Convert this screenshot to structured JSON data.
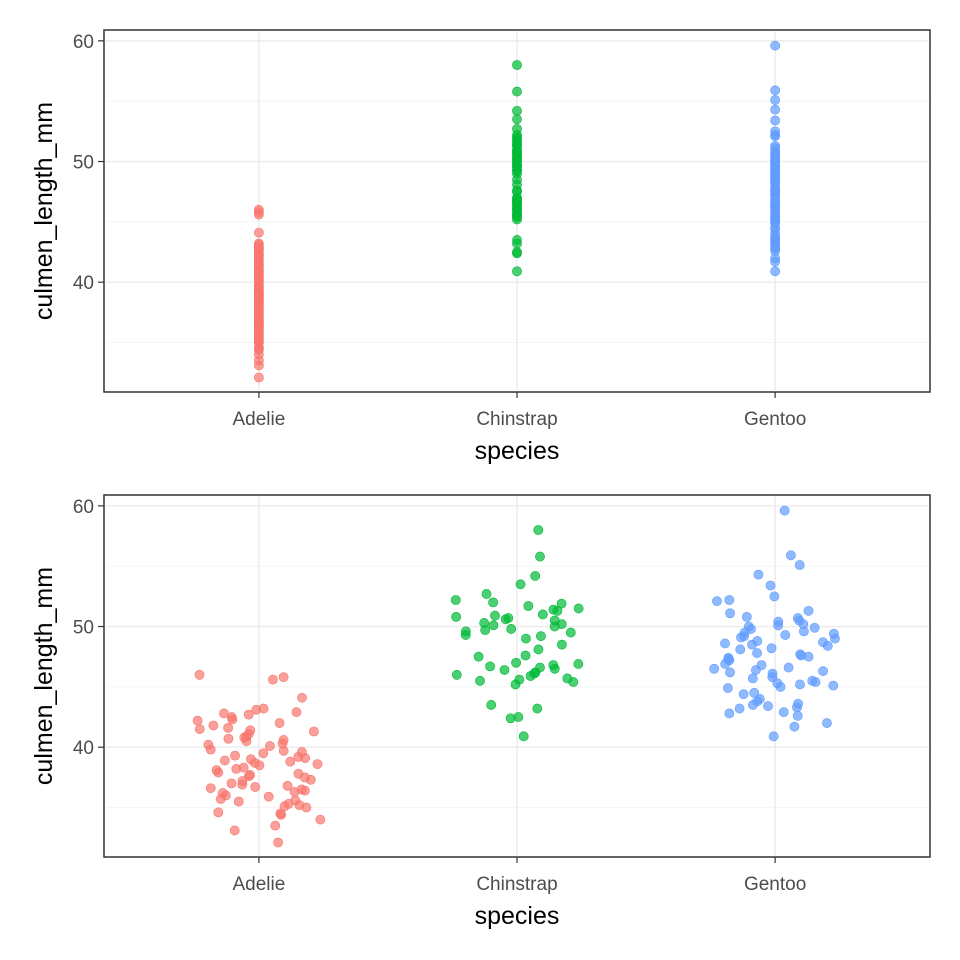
{
  "chart_data": [
    {
      "type": "scatter",
      "variant": "strip",
      "xlabel": "species",
      "ylabel": "culmen_length_mm",
      "categories": [
        "Adelie",
        "Chinstrap",
        "Gentoo"
      ],
      "ylim": [
        30.9,
        60.9
      ],
      "yticks": [
        40,
        50,
        60
      ],
      "grid": true,
      "legend": "none",
      "jitter": 0,
      "colors": [
        "#F8766D",
        "#00BA38",
        "#619CFF"
      ],
      "series": [
        {
          "category": "Adelie",
          "values": [
            32.1,
            33.1,
            33.5,
            34.0,
            34.4,
            34.5,
            34.6,
            35.0,
            35.1,
            35.2,
            35.3,
            35.5,
            35.6,
            35.7,
            35.9,
            36.0,
            36.2,
            36.3,
            36.4,
            36.5,
            36.6,
            36.7,
            36.8,
            36.9,
            37.0,
            37.2,
            37.3,
            37.5,
            37.6,
            37.7,
            37.8,
            37.9,
            38.1,
            38.2,
            38.3,
            38.5,
            38.6,
            38.7,
            38.8,
            38.9,
            39.0,
            39.1,
            39.2,
            39.3,
            39.5,
            39.6,
            39.7,
            39.8,
            40.1,
            40.2,
            40.3,
            40.5,
            40.6,
            40.7,
            40.8,
            40.9,
            41.1,
            41.3,
            41.4,
            41.5,
            41.6,
            41.8,
            42.0,
            42.2,
            42.3,
            42.5,
            42.7,
            42.8,
            42.9,
            43.1,
            43.2,
            44.1,
            45.6,
            45.8,
            46.0
          ]
        },
        {
          "category": "Chinstrap",
          "values": [
            40.9,
            42.4,
            42.5,
            43.2,
            43.5,
            45.2,
            45.4,
            45.5,
            45.6,
            45.7,
            45.9,
            46.0,
            46.1,
            46.2,
            46.4,
            46.5,
            46.6,
            46.7,
            46.8,
            46.9,
            47.0,
            47.5,
            47.6,
            48.1,
            48.5,
            49.0,
            49.2,
            49.3,
            49.5,
            49.6,
            49.7,
            49.8,
            50.0,
            50.1,
            50.2,
            50.3,
            50.5,
            50.6,
            50.7,
            50.8,
            50.9,
            51.0,
            51.3,
            51.4,
            51.5,
            51.7,
            51.9,
            52.0,
            52.2,
            52.7,
            53.5,
            54.2,
            55.8,
            58.0
          ]
        },
        {
          "category": "Gentoo",
          "values": [
            40.9,
            41.7,
            42.0,
            42.6,
            42.8,
            42.9,
            43.2,
            43.3,
            43.4,
            43.5,
            43.6,
            43.8,
            44.0,
            44.4,
            44.5,
            44.9,
            45.0,
            45.1,
            45.2,
            45.3,
            45.4,
            45.5,
            45.7,
            45.8,
            46.1,
            46.2,
            46.3,
            46.4,
            46.5,
            46.6,
            46.8,
            46.9,
            47.2,
            47.3,
            47.4,
            47.5,
            47.6,
            47.7,
            47.8,
            48.1,
            48.2,
            48.4,
            48.5,
            48.6,
            48.7,
            48.8,
            49.0,
            49.1,
            49.2,
            49.3,
            49.4,
            49.5,
            49.6,
            49.8,
            49.9,
            50.0,
            50.1,
            50.2,
            50.4,
            50.5,
            50.7,
            50.8,
            51.1,
            51.3,
            52.1,
            52.2,
            52.5,
            53.4,
            54.3,
            55.1,
            55.9,
            59.6
          ]
        }
      ]
    },
    {
      "type": "scatter",
      "variant": "jitter",
      "xlabel": "species",
      "ylabel": "culmen_length_mm",
      "categories": [
        "Adelie",
        "Chinstrap",
        "Gentoo"
      ],
      "ylim": [
        30.9,
        60.9
      ],
      "yticks": [
        40,
        50,
        60
      ],
      "grid": true,
      "legend": "none",
      "jitter": 0.12,
      "colors": [
        "#F8766D",
        "#00BA38",
        "#619CFF"
      ],
      "series": [
        {
          "category": "Adelie",
          "values": [
            32.1,
            33.1,
            33.5,
            34.0,
            34.4,
            34.5,
            34.6,
            35.0,
            35.1,
            35.2,
            35.3,
            35.5,
            35.6,
            35.7,
            35.9,
            36.0,
            36.2,
            36.3,
            36.4,
            36.5,
            36.6,
            36.7,
            36.8,
            36.9,
            37.0,
            37.2,
            37.3,
            37.5,
            37.6,
            37.7,
            37.8,
            37.9,
            38.1,
            38.2,
            38.3,
            38.5,
            38.6,
            38.7,
            38.8,
            38.9,
            39.0,
            39.1,
            39.2,
            39.3,
            39.5,
            39.6,
            39.7,
            39.8,
            40.1,
            40.2,
            40.3,
            40.5,
            40.6,
            40.7,
            40.8,
            40.9,
            41.1,
            41.3,
            41.4,
            41.5,
            41.6,
            41.8,
            42.0,
            42.2,
            42.3,
            42.5,
            42.7,
            42.8,
            42.9,
            43.1,
            43.2,
            44.1,
            45.6,
            45.8,
            46.0
          ]
        },
        {
          "category": "Chinstrap",
          "values": [
            40.9,
            42.4,
            42.5,
            43.2,
            43.5,
            45.2,
            45.4,
            45.5,
            45.6,
            45.7,
            45.9,
            46.0,
            46.1,
            46.2,
            46.4,
            46.5,
            46.6,
            46.7,
            46.8,
            46.9,
            47.0,
            47.5,
            47.6,
            48.1,
            48.5,
            49.0,
            49.2,
            49.3,
            49.5,
            49.6,
            49.7,
            49.8,
            50.0,
            50.1,
            50.2,
            50.3,
            50.5,
            50.6,
            50.7,
            50.8,
            50.9,
            51.0,
            51.3,
            51.4,
            51.5,
            51.7,
            51.9,
            52.0,
            52.2,
            52.7,
            53.5,
            54.2,
            55.8,
            58.0
          ]
        },
        {
          "category": "Gentoo",
          "values": [
            40.9,
            41.7,
            42.0,
            42.6,
            42.8,
            42.9,
            43.2,
            43.3,
            43.4,
            43.5,
            43.6,
            43.8,
            44.0,
            44.4,
            44.5,
            44.9,
            45.0,
            45.1,
            45.2,
            45.3,
            45.4,
            45.5,
            45.7,
            45.8,
            46.1,
            46.2,
            46.3,
            46.4,
            46.5,
            46.6,
            46.8,
            46.9,
            47.2,
            47.3,
            47.4,
            47.5,
            47.6,
            47.7,
            47.8,
            48.1,
            48.2,
            48.4,
            48.5,
            48.6,
            48.7,
            48.8,
            49.0,
            49.1,
            49.2,
            49.3,
            49.4,
            49.5,
            49.6,
            49.8,
            49.9,
            50.0,
            50.1,
            50.2,
            50.4,
            50.5,
            50.7,
            50.8,
            51.1,
            51.3,
            52.1,
            52.2,
            52.5,
            53.4,
            54.3,
            55.1,
            55.9,
            59.6
          ]
        }
      ]
    }
  ]
}
